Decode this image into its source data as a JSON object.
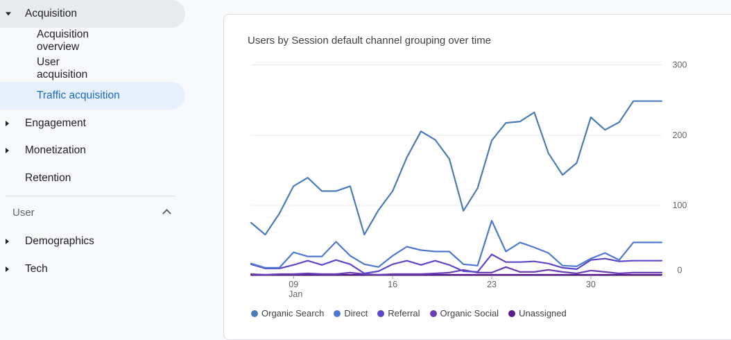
{
  "sidebar": {
    "acquisition": "Acquisition",
    "acquisition_overview": "Acquisition overview",
    "user_acquisition": "User acquisition",
    "traffic_acquisition": "Traffic acquisition",
    "engagement": "Engagement",
    "monetization": "Monetization",
    "retention": "Retention",
    "user_section": "User",
    "demographics": "Demographics",
    "tech": "Tech"
  },
  "card": {
    "title": "Users by Session default channel grouping over time"
  },
  "chart_data": {
    "type": "line",
    "title": "Users by Session default channel grouping over time",
    "x": [
      "Jan 6",
      "Jan 7",
      "Jan 8",
      "Jan 9",
      "Jan 10",
      "Jan 11",
      "Jan 12",
      "Jan 13",
      "Jan 14",
      "Jan 15",
      "Jan 16",
      "Jan 17",
      "Jan 18",
      "Jan 19",
      "Jan 20",
      "Jan 21",
      "Jan 22",
      "Jan 23",
      "Jan 24",
      "Jan 25",
      "Jan 26",
      "Jan 27",
      "Jan 28",
      "Jan 29",
      "Jan 30",
      "Jan 31",
      "Feb 1",
      "Feb 2",
      "Feb 3",
      "Feb 4"
    ],
    "x_ticks": [
      {
        "index": 3,
        "label": "09",
        "sublabel": "Jan"
      },
      {
        "index": 10,
        "label": "16",
        "sublabel": ""
      },
      {
        "index": 17,
        "label": "23",
        "sublabel": ""
      },
      {
        "index": 24,
        "label": "30",
        "sublabel": ""
      }
    ],
    "y_ticks": [
      0,
      100,
      200,
      300
    ],
    "ylim": [
      0,
      300
    ],
    "y_axis_side": "right",
    "grid": true,
    "legend_position": "bottom",
    "series": [
      {
        "name": "Organic Search",
        "color": "#4a7bb7",
        "values": [
          75,
          58,
          88,
          127,
          139,
          120,
          120,
          127,
          58,
          93,
          120,
          168,
          205,
          193,
          166,
          92,
          124,
          192,
          217,
          219,
          232,
          174,
          143,
          160,
          225,
          207,
          218,
          248,
          248,
          248
        ]
      },
      {
        "name": "Direct",
        "color": "#4e78d0",
        "values": [
          17,
          11,
          11,
          33,
          27,
          27,
          48,
          28,
          16,
          12,
          28,
          41,
          36,
          34,
          34,
          16,
          14,
          78,
          34,
          47,
          40,
          32,
          14,
          13,
          24,
          32,
          22,
          47,
          47,
          47
        ]
      },
      {
        "name": "Referral",
        "color": "#5b45c9",
        "values": [
          16,
          10,
          10,
          15,
          21,
          15,
          22,
          16,
          3,
          6,
          16,
          21,
          15,
          21,
          15,
          6,
          5,
          30,
          19,
          19,
          20,
          17,
          11,
          9,
          22,
          24,
          20,
          21,
          21,
          21
        ]
      },
      {
        "name": "Organic Social",
        "color": "#6a3fb5",
        "values": [
          2,
          1,
          2,
          2,
          3,
          2,
          2,
          4,
          2,
          1,
          2,
          2,
          2,
          3,
          4,
          8,
          4,
          4,
          12,
          5,
          5,
          8,
          5,
          3,
          7,
          5,
          3,
          4,
          4,
          4
        ]
      },
      {
        "name": "Unassigned",
        "color": "#5a1a8f",
        "values": [
          1,
          1,
          1,
          1,
          1,
          1,
          1,
          1,
          1,
          1,
          1,
          1,
          1,
          1,
          1,
          1,
          1,
          1,
          1,
          1,
          1,
          1,
          1,
          1,
          1,
          1,
          1,
          1,
          1,
          1
        ]
      }
    ]
  }
}
